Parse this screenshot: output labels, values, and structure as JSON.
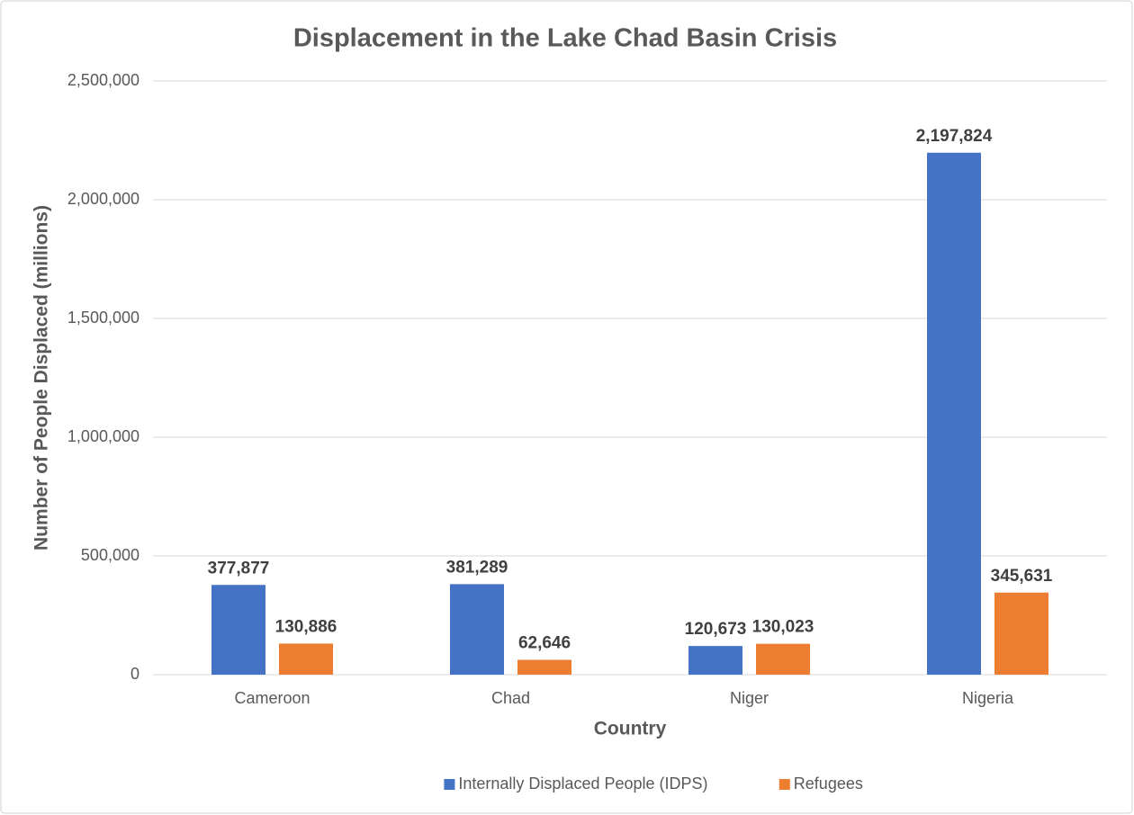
{
  "chart_data": {
    "type": "bar",
    "title": "Displacement in the Lake Chad Basin Crisis",
    "x_label": "Country",
    "y_label": "Number of People Displaced (millions)",
    "categories": [
      "Cameroon",
      "Chad",
      "Niger",
      "Nigeria"
    ],
    "series": [
      {
        "name": "Internally Displaced People (IDPS)",
        "color": "#4472c4",
        "values": [
          377877,
          381289,
          120673,
          2197824
        ],
        "value_labels": [
          "377,877",
          "381,289",
          "120,673",
          "2,197,824"
        ]
      },
      {
        "name": "Refugees",
        "color": "#ed7d31",
        "values": [
          130886,
          62646,
          130023,
          345631
        ],
        "value_labels": [
          "130,886",
          "62,646",
          "130,023",
          "345,631"
        ]
      }
    ],
    "ylim": [
      0,
      2500000
    ],
    "yticks": [
      0,
      {
        "value": 500000,
        "label": "500,000"
      },
      {
        "value": 1000000,
        "label": "1,000,000"
      },
      {
        "value": 1500000,
        "label": "1,500,000"
      },
      {
        "value": 2000000,
        "label": "2,000,000"
      },
      {
        "value": 2500000,
        "label": "2,500,000"
      }
    ],
    "grid": true,
    "legend": "bottom"
  }
}
